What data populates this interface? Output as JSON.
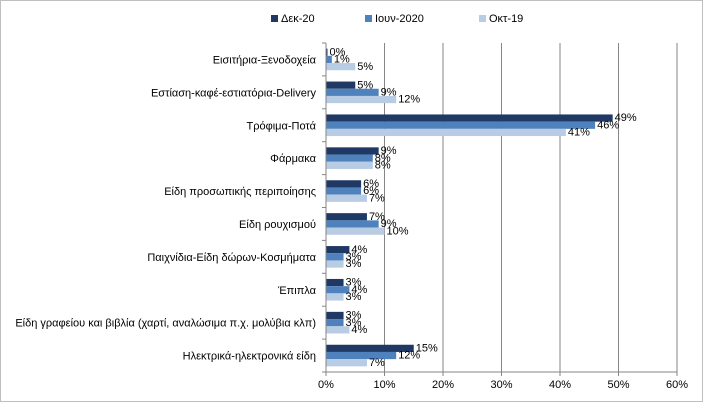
{
  "chart_data": {
    "type": "bar",
    "orientation": "horizontal",
    "categories": [
      "Εισιτήρια-Ξενοδοχεία",
      "Εστίαση-καφέ-εστιατόρια-Delivery",
      "Τρόφιμα-Ποτά",
      "Φάρμακα",
      "Είδη προσωπικής περιποίησης",
      "Είδη ρουχισμού",
      "Παιχνίδια-Είδη  δώρων-Κοσμήματα",
      "Έπιπλα",
      "Είδη γραφείου και βιβλία  (χαρτί, αναλώσιμα π.χ. μολύβια κλπ)",
      "Ηλεκτρικά-ηλεκτρονικά  είδη"
    ],
    "series": [
      {
        "name": "Δεκ-20",
        "color": "#1f3864",
        "values": [
          0,
          5,
          49,
          9,
          6,
          7,
          4,
          3,
          3,
          15
        ],
        "labels": [
          "0%",
          "5%",
          "49%",
          "9%",
          "6%",
          "7%",
          "4%",
          "3%",
          "3%",
          "15%"
        ]
      },
      {
        "name": "Ιουν-2020",
        "color": "#4f81bd",
        "values": [
          1,
          9,
          46,
          8,
          6,
          9,
          3,
          4,
          3,
          12
        ],
        "labels": [
          "1%",
          "9%",
          "46%",
          "8%",
          "6%",
          "9%",
          "3%",
          "4%",
          "3%",
          "12%"
        ]
      },
      {
        "name": "Οκτ-19",
        "color": "#b8cce4",
        "values": [
          5,
          12,
          41,
          8,
          7,
          10,
          3,
          3,
          4,
          7
        ],
        "labels": [
          "5%",
          "12%",
          "41%",
          "8%",
          "7%",
          "10%",
          "3%",
          "3%",
          "4%",
          "7%"
        ]
      }
    ],
    "xlim": [
      0,
      60
    ],
    "xticks": [
      "0%",
      "10%",
      "20%",
      "30%",
      "40%",
      "50%",
      "60%"
    ],
    "grid": true,
    "legend": "top"
  }
}
